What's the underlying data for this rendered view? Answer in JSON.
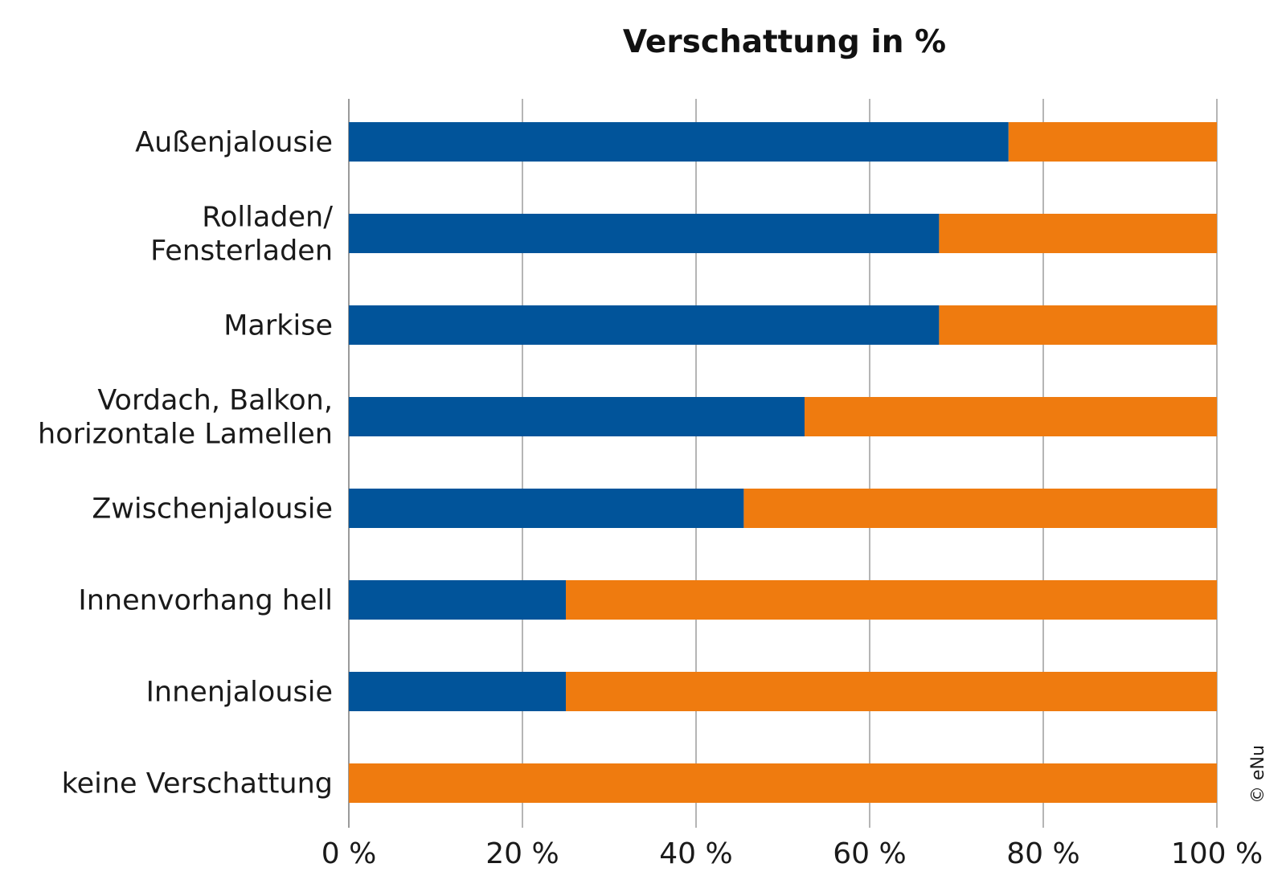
{
  "chart_data": {
    "type": "bar",
    "orientation": "horizontal",
    "stacked": true,
    "title": "Verschattung in %",
    "categories": [
      [
        "Außenjalousie"
      ],
      [
        "Rolladen/",
        "Fensterladen"
      ],
      [
        "Markise"
      ],
      [
        "Vordach, Balkon,",
        "horizontale Lamellen"
      ],
      [
        "Zwischenjalousie"
      ],
      [
        "Innenvorhang hell"
      ],
      [
        "Innenjalousie"
      ],
      [
        "keine Verschattung"
      ]
    ],
    "series": [
      {
        "color": "#01549a",
        "values": [
          76,
          68,
          68,
          52.5,
          45.5,
          25,
          25,
          0
        ]
      },
      {
        "color": "#ef7b0f",
        "values": [
          24,
          32,
          32,
          47.5,
          54.5,
          75,
          75,
          100
        ]
      }
    ],
    "xlim": [
      0,
      100
    ],
    "xticks": [
      0,
      20,
      40,
      60,
      80,
      100
    ],
    "xtick_labels": [
      "0 %",
      "20 %",
      "40 %",
      "60 %",
      "80 %",
      "100 %"
    ],
    "grid": true,
    "copyright": "© eNu"
  }
}
